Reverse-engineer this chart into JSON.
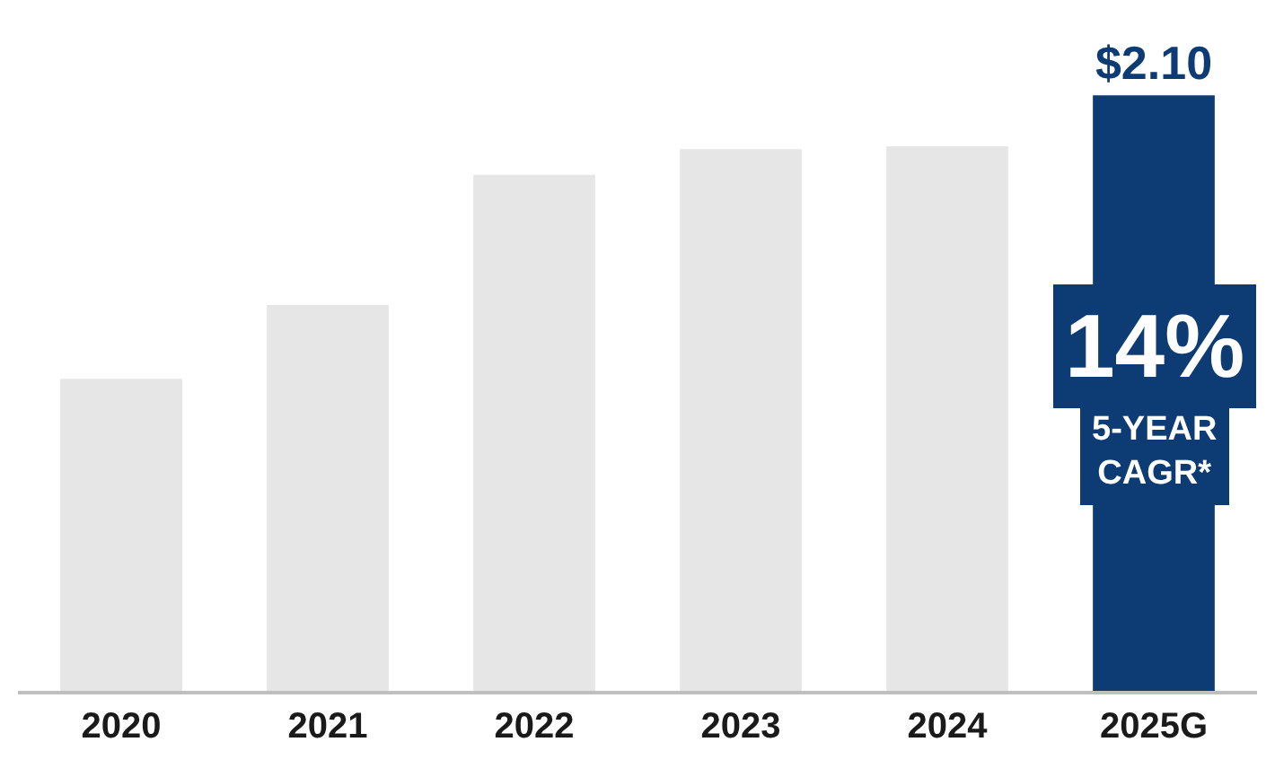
{
  "chart_data": {
    "type": "bar",
    "categories": [
      "2020",
      "2021",
      "2022",
      "2023",
      "2024",
      "2025G"
    ],
    "values": [
      1.1,
      1.36,
      1.82,
      1.91,
      1.92,
      2.1
    ],
    "colors": [
      "#e6e6e6",
      "#e6e6e6",
      "#e6e6e6",
      "#e6e6e6",
      "#e6e6e6",
      "#0d3b73"
    ],
    "value_labels": [
      null,
      null,
      null,
      null,
      null,
      "$2.10"
    ],
    "annotations": [
      "14%",
      "5-YEAR CAGR*"
    ]
  }
}
